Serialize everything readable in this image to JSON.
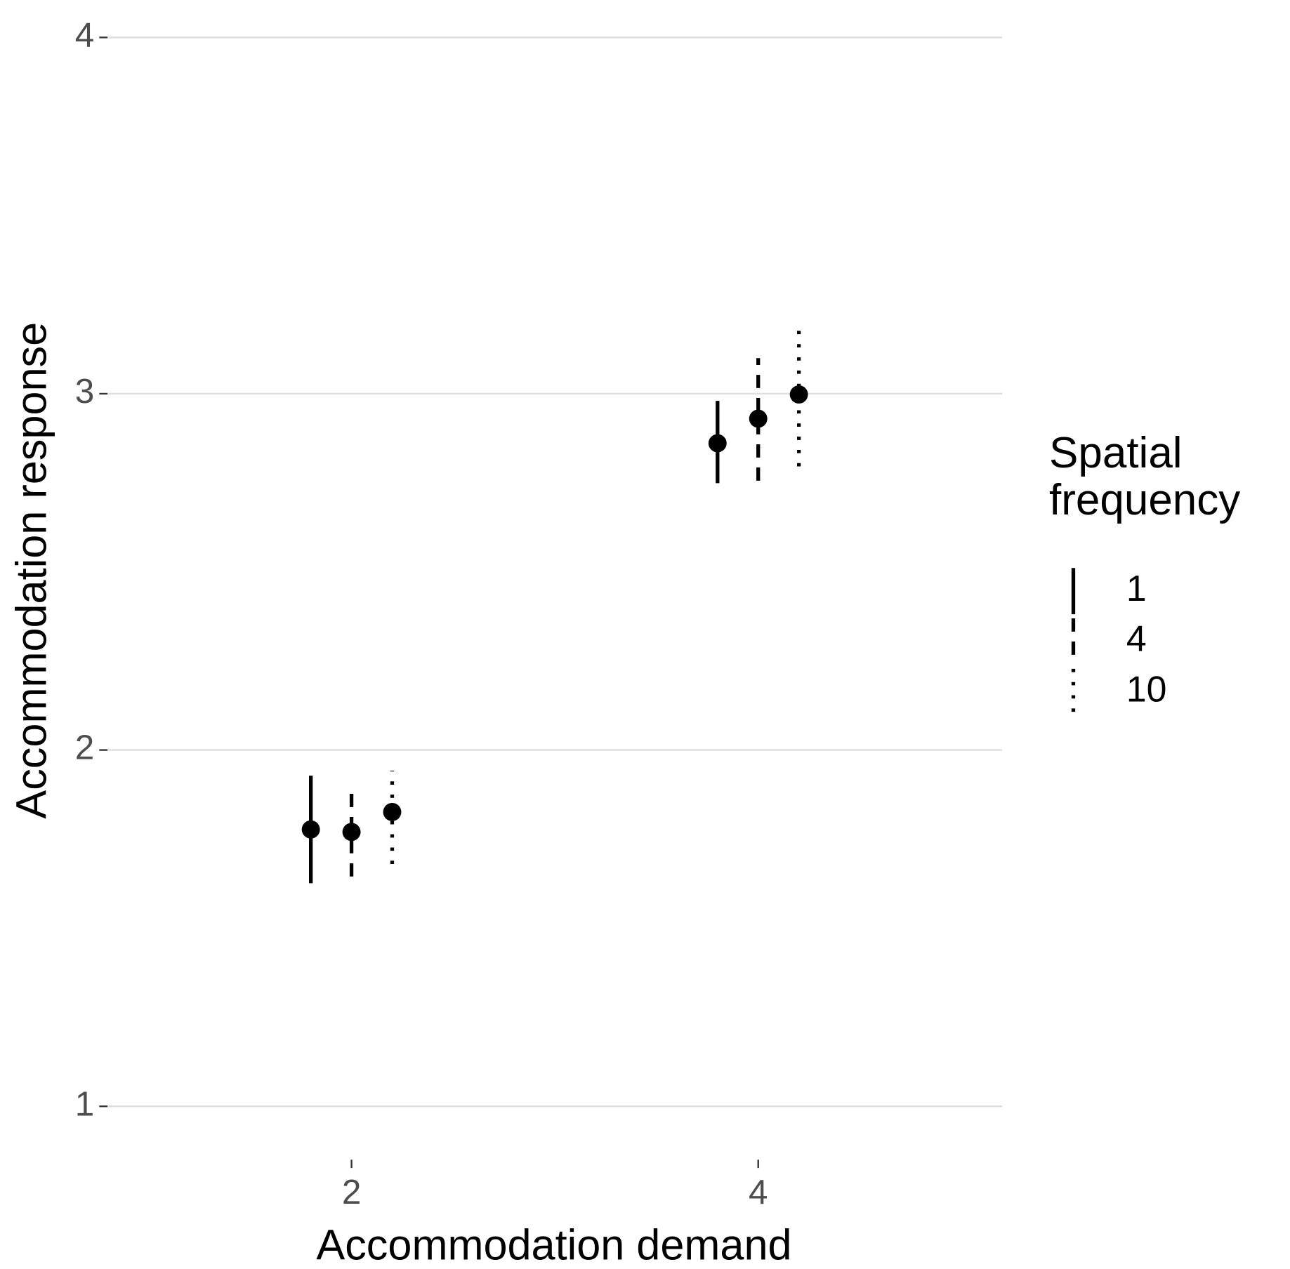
{
  "chart_data": {
    "type": "pointrange",
    "x_label": "Accommodation demand",
    "y_label": "Accommodation response",
    "legend_title": "Spatial frequency",
    "categories": [
      "2",
      "4"
    ],
    "series": [
      {
        "name": "1",
        "color": "#000000",
        "linetype": "solid",
        "values": [
          1.777,
          2.861
        ],
        "lower": [
          1.626,
          2.749
        ],
        "upper": [
          1.928,
          2.98
        ]
      },
      {
        "name": "4",
        "color": "#000000",
        "linetype": "dashed",
        "values": [
          1.77,
          2.93
        ],
        "lower": [
          1.645,
          2.756
        ],
        "upper": [
          1.889,
          3.1
        ]
      },
      {
        "name": "10",
        "color": "#000000",
        "linetype": "dotted",
        "values": [
          1.826,
          2.998
        ],
        "lower": [
          1.68,
          2.796
        ],
        "upper": [
          1.942,
          3.2
        ]
      }
    ],
    "ylim": [
      0.85,
      4.1
    ],
    "yticks": [
      1,
      2,
      3,
      4
    ],
    "grid": true
  }
}
